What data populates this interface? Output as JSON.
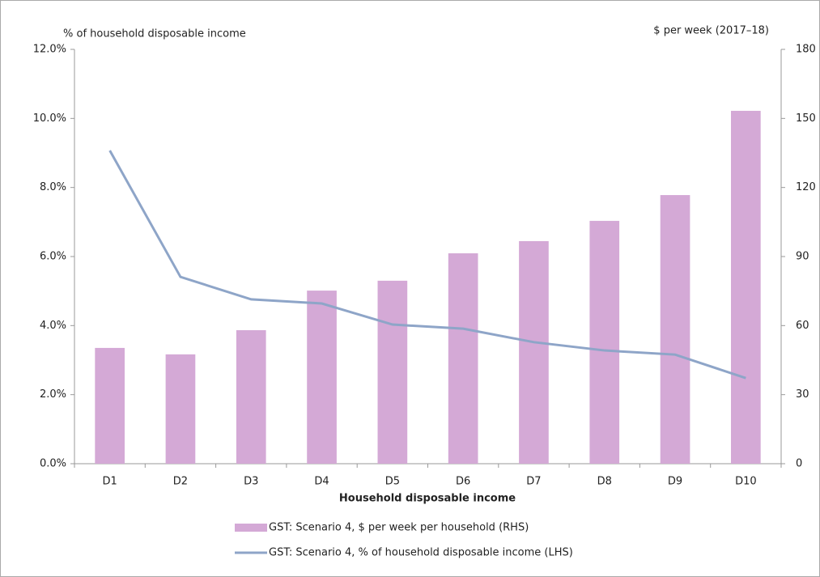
{
  "chart_data": {
    "type": "bar_line",
    "y_label": "% of household disposable income",
    "y2_label": "$ per week (2017–18)",
    "x_label": "Household disposable income",
    "categories": [
      "D1",
      "D2",
      "D3",
      "D4",
      "D5",
      "D6",
      "D7",
      "D8",
      "D9",
      "D10"
    ],
    "series": [
      {
        "name": "GST: Scenario 4, $ per week per household (RHS)",
        "type": "bar",
        "axis": "y2",
        "color": "#d4a9d6",
        "values": [
          50.3,
          47.5,
          58,
          75.2,
          79.5,
          91.4,
          96.7,
          105.5,
          116.7,
          153.3
        ]
      },
      {
        "name": "GST: Scenario 4, % of household disposable income (LHS)",
        "type": "line",
        "axis": "y",
        "color": "#8ea5c8",
        "values": [
          9.07,
          5.41,
          4.76,
          4.64,
          4.03,
          3.91,
          3.52,
          3.28,
          3.16,
          2.48
        ]
      }
    ],
    "ylim": [
      0,
      12
    ],
    "yticks": [
      {
        "value": 0,
        "label": "0.0%"
      },
      {
        "value": 2,
        "label": "2.0%"
      },
      {
        "value": 4,
        "label": "4.0%"
      },
      {
        "value": 6,
        "label": "6.0%"
      },
      {
        "value": 8,
        "label": "8.0%"
      },
      {
        "value": 10,
        "label": "10.0%"
      },
      {
        "value": 12,
        "label": "12.0%"
      }
    ],
    "y2lim": [
      0,
      180
    ],
    "y2ticks": [
      0,
      30,
      60,
      90,
      120,
      150,
      180
    ],
    "grid": false,
    "legend": "bottom"
  }
}
